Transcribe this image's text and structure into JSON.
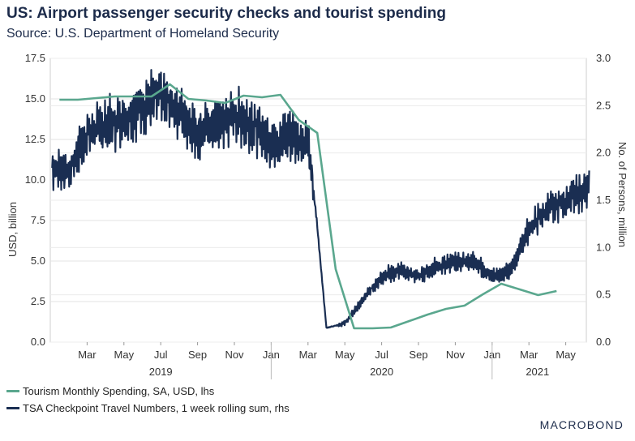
{
  "title": "US: Airport passenger security checks and tourist spending",
  "subtitle": "Source: U.S. Department of Homeland Security",
  "logo": "MACROBOND",
  "chart_data": {
    "type": "line",
    "left_axis": {
      "label": "USD, billion",
      "ylim": [
        0,
        17.5
      ],
      "ticks": [
        "0.0",
        "2.5",
        "5.0",
        "7.5",
        "10.0",
        "12.5",
        "15.0",
        "17.5"
      ]
    },
    "right_axis": {
      "label": "No. of Persons, million",
      "ylim": [
        0,
        3.0
      ],
      "ticks": [
        "0.0",
        "0.5",
        "1.0",
        "1.5",
        "2.0",
        "2.5",
        "3.0"
      ]
    },
    "x_tick_labels": [
      "Mar",
      "May",
      "Jul",
      "Sep",
      "Nov",
      "Jan",
      "Mar",
      "May",
      "Jul",
      "Sep",
      "Nov",
      "Jan",
      "Mar",
      "May"
    ],
    "year_labels": [
      "2019",
      "2020",
      "2021"
    ],
    "grid": true,
    "legend_position": "bottom",
    "series": [
      {
        "name": "Tourism Monthly Spending, SA, USD, lhs",
        "color": "#5aa78e",
        "axis": "left",
        "x": [
          "2019-01",
          "2019-02",
          "2019-03",
          "2019-04",
          "2019-05",
          "2019-06",
          "2019-07",
          "2019-08",
          "2019-09",
          "2019-10",
          "2019-11",
          "2019-12",
          "2020-01",
          "2020-02",
          "2020-03",
          "2020-04",
          "2020-05",
          "2020-06",
          "2020-07",
          "2020-08",
          "2020-09",
          "2020-10",
          "2020-11",
          "2020-12",
          "2021-01",
          "2021-02",
          "2021-03",
          "2021-04"
        ],
        "values": [
          14.95,
          14.95,
          15.05,
          15.15,
          15.15,
          15.15,
          15.9,
          15.0,
          14.9,
          14.75,
          15.2,
          15.1,
          15.25,
          13.7,
          12.9,
          4.5,
          0.85,
          0.85,
          0.9,
          1.3,
          1.7,
          2.05,
          2.25,
          2.95,
          3.6,
          3.25,
          2.9,
          3.15
        ]
      },
      {
        "name": "TSA Checkpoint Travel Numbers, 1 week rolling sum, rhs",
        "color": "#1a2e52",
        "axis": "right",
        "x": [
          "2019-01",
          "2019-02",
          "2019-03",
          "2019-04",
          "2019-05",
          "2019-06",
          "2019-07",
          "2019-08",
          "2019-09",
          "2019-10",
          "2019-11",
          "2019-12",
          "2020-01",
          "2020-02",
          "2020-03-01",
          "2020-03-15",
          "2020-04",
          "2020-05",
          "2020-06",
          "2020-07",
          "2020-08",
          "2020-09",
          "2020-10",
          "2020-11",
          "2020-12",
          "2021-01",
          "2021-02",
          "2021-03",
          "2021-04",
          "2021-05",
          "2021-06"
        ],
        "values": [
          1.85,
          1.8,
          2.2,
          2.3,
          2.35,
          2.5,
          2.6,
          2.45,
          2.2,
          2.3,
          2.4,
          2.3,
          2.1,
          2.2,
          2.1,
          1.3,
          0.15,
          0.2,
          0.45,
          0.7,
          0.75,
          0.7,
          0.8,
          0.85,
          0.85,
          0.7,
          0.75,
          1.2,
          1.4,
          1.5,
          1.6
        ]
      }
    ]
  }
}
